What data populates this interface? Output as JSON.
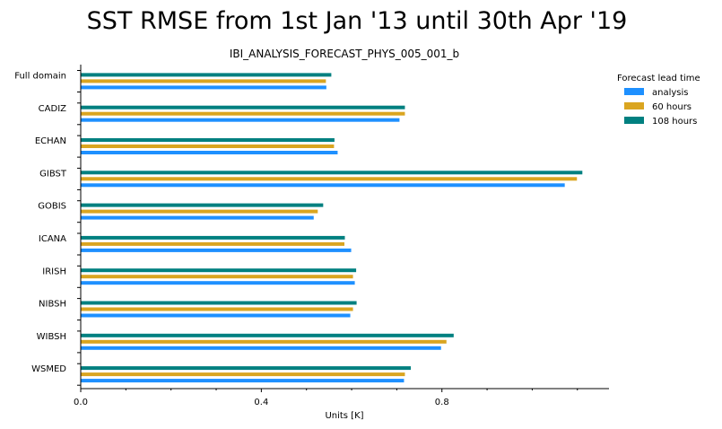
{
  "chart_data": {
    "type": "bar",
    "orientation": "horizontal",
    "title": "SST RMSE from 1st Jan '13 until 30th Apr '19",
    "subtitle": "IBI_ANALYSIS_FORECAST_PHYS_005_001_b",
    "xlabel": "Units [K]",
    "ylabel": "",
    "xlim": [
      0,
      1.17
    ],
    "xticks": [
      0.0,
      0.4,
      0.8
    ],
    "xtick_labels": [
      "0.0",
      "0.4",
      "0.8"
    ],
    "categories": [
      "Full domain",
      "CADIZ",
      "ECHAN",
      "GIBST",
      "GOBIS",
      "ICANA",
      "IRISH",
      "NIBSH",
      "WIBSH",
      "WSMED"
    ],
    "legend_title": "Forecast lead time",
    "legend_position": "top-right",
    "grid": false,
    "series": [
      {
        "name": "analysis",
        "color": "#1E90FF",
        "values": [
          0.544,
          0.706,
          0.569,
          1.072,
          0.516,
          0.599,
          0.607,
          0.597,
          0.798,
          0.716
        ]
      },
      {
        "name": "60 hours",
        "color": "#DAA520",
        "values": [
          0.543,
          0.718,
          0.561,
          1.099,
          0.525,
          0.584,
          0.603,
          0.603,
          0.81,
          0.718
        ]
      },
      {
        "name": "108 hours",
        "color": "#008080",
        "values": [
          0.555,
          0.718,
          0.562,
          1.111,
          0.537,
          0.585,
          0.61,
          0.611,
          0.826,
          0.731
        ]
      }
    ]
  }
}
